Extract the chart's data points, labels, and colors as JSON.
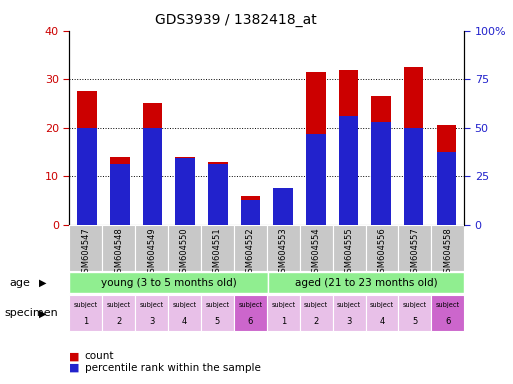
{
  "title": "GDS3939 / 1382418_at",
  "samples": [
    "GSM604547",
    "GSM604548",
    "GSM604549",
    "GSM604550",
    "GSM604551",
    "GSM604552",
    "GSM604553",
    "GSM604554",
    "GSM604555",
    "GSM604556",
    "GSM604557",
    "GSM604558"
  ],
  "count_values": [
    27.5,
    14.0,
    25.0,
    14.0,
    13.0,
    6.0,
    6.5,
    31.5,
    32.0,
    26.5,
    32.5,
    20.5
  ],
  "percentile_values": [
    20.0,
    12.5,
    20.0,
    13.75,
    12.5,
    5.0,
    7.5,
    18.75,
    22.5,
    21.25,
    20.0,
    15.0
  ],
  "bar_width": 0.6,
  "count_color": "#CC0000",
  "percentile_color": "#2222CC",
  "ylim_left": [
    0,
    40
  ],
  "ylim_right": [
    0,
    100
  ],
  "yticks_left": [
    0,
    10,
    20,
    30,
    40
  ],
  "yticks_right": [
    0,
    25,
    50,
    75,
    100
  ],
  "ytick_labels_left": [
    "0",
    "10",
    "20",
    "30",
    "40"
  ],
  "ytick_labels_right": [
    "0",
    "25",
    "50",
    "75",
    "100%"
  ],
  "young_label": "young (3 to 5 months old)",
  "aged_label": "aged (21 to 23 months old)",
  "age_color": "#90EE90",
  "specimen_color_light": "#E8C0E8",
  "specimen_color_dark": "#CC66CC",
  "specimen_dark_indices": [
    5
  ],
  "age_label": "age",
  "specimen_label": "specimen",
  "legend_count": "count",
  "legend_percentile": "percentile rank within the sample",
  "tick_color_left": "#CC0000",
  "tick_color_right": "#2222CC"
}
